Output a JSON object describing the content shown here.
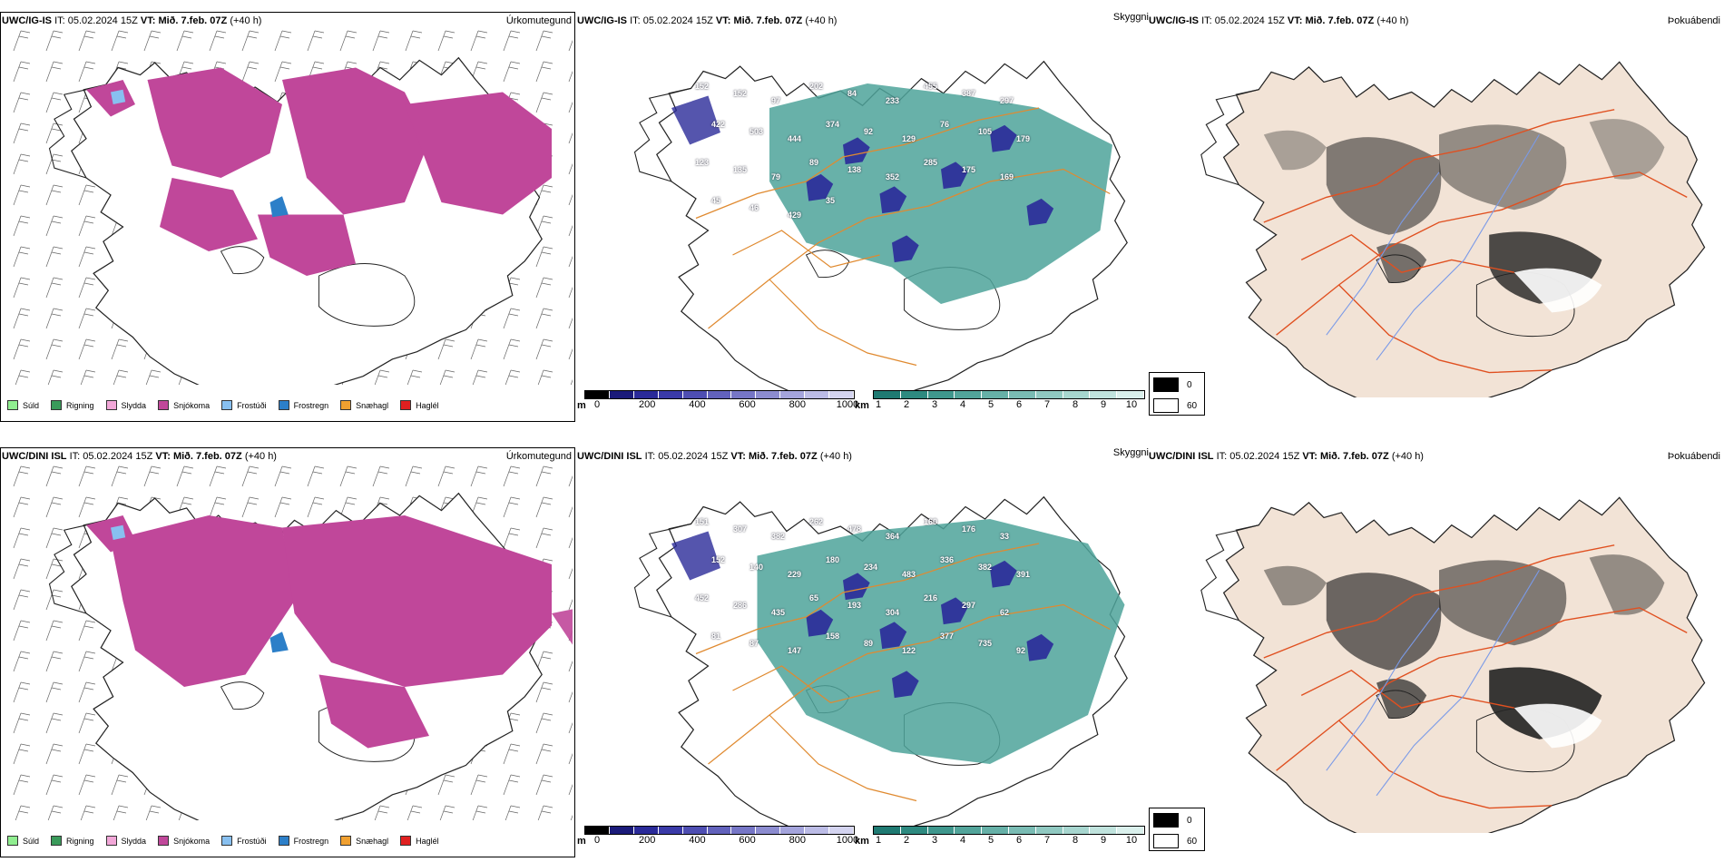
{
  "rows": [
    {
      "model": "UWC/IG-IS",
      "it_label": "IT:",
      "it_value": "05.02.2024 15Z",
      "vt_label": "VT:",
      "vt_value": "Mið. 7.feb. 07Z",
      "lead": "(+40 h)"
    },
    {
      "model": "UWC/DINI ISL",
      "it_label": "IT:",
      "it_value": "05.02.2024 15Z",
      "vt_label": "VT:",
      "vt_value": "Mið. 7.feb. 07Z",
      "lead": "(+40 h)"
    }
  ],
  "panels": {
    "precip_type": "Úrkomutegund",
    "visibility": "Skyggni",
    "fog_index": "Þokuábendi"
  },
  "precip_legend": [
    {
      "label": "Súld",
      "color": "#90ee90"
    },
    {
      "label": "Rigning",
      "color": "#3a9a5a"
    },
    {
      "label": "Slydda",
      "color": "#f2a7d8"
    },
    {
      "label": "Snjókoma",
      "color": "#c0479a"
    },
    {
      "label": "Frostúði",
      "color": "#88c0f0"
    },
    {
      "label": "Frostregn",
      "color": "#2c7fc8"
    },
    {
      "label": "Snæhagl",
      "color": "#f0a030"
    },
    {
      "label": "Haglél",
      "color": "#e02020"
    }
  ],
  "height_bar": {
    "unit": "m",
    "ticks": [
      "0",
      "200",
      "400",
      "600",
      "800",
      "1000"
    ],
    "colors": [
      "#000000",
      "#1b1b7a",
      "#2a2a99",
      "#3a3aa8",
      "#4e4eb2",
      "#6262bc",
      "#7676c6",
      "#8c8cd0",
      "#a4a4dc",
      "#bcbce6",
      "#d4d4f0"
    ]
  },
  "vis_bar": {
    "unit": "km",
    "ticks": [
      "1",
      "2",
      "3",
      "4",
      "5",
      "6",
      "7",
      "8",
      "9",
      "10"
    ],
    "colors": [
      "#1f7a72",
      "#2e8a80",
      "#3f978d",
      "#52a49a",
      "#66b0a7",
      "#7abcb4",
      "#90c9c1",
      "#a7d6cf",
      "#c0e3dd",
      "#daf0ec"
    ]
  },
  "fog_legend": [
    {
      "label": "0",
      "color": "#000000"
    },
    {
      "label": "60",
      "color": "#ffffff"
    }
  ],
  "vis_labels_top": [
    "152",
    "152",
    "97",
    "202",
    "84",
    "233",
    "455",
    "387",
    "297",
    "422",
    "503",
    "444",
    "374",
    "92",
    "129",
    "76",
    "105",
    "179",
    "123",
    "135",
    "79",
    "89",
    "138",
    "352",
    "285",
    "175",
    "169",
    "45",
    "46",
    "429",
    "35"
  ],
  "vis_labels_bottom": [
    "151",
    "307",
    "382",
    "262",
    "478",
    "364",
    "160",
    "176",
    "33",
    "152",
    "140",
    "229",
    "180",
    "234",
    "483",
    "336",
    "382",
    "391",
    "452",
    "286",
    "435",
    "65",
    "193",
    "304",
    "216",
    "297",
    "62",
    "81",
    "87",
    "147",
    "158",
    "89",
    "122",
    "377",
    "735",
    "92"
  ]
}
